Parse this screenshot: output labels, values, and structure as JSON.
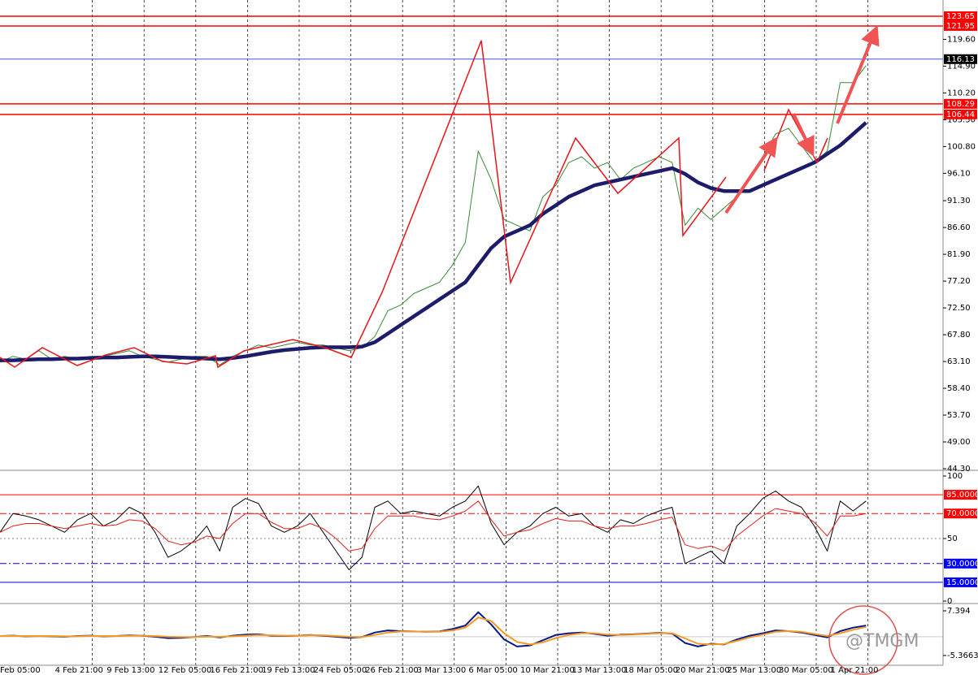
{
  "chart_data": [
    {
      "type": "line",
      "categories": [
        "Feb 05:00",
        null,
        null,
        null,
        "4 Feb 21:00",
        null,
        null,
        null,
        "9 Feb 13:00",
        null,
        null,
        null,
        "12 Feb 05:00",
        null,
        null,
        null,
        "16 Feb 21:00",
        null,
        null,
        null,
        "19 Feb 13:00",
        null,
        null,
        null,
        "24 Feb 05:00",
        null,
        null,
        null,
        "26 Feb 21:00",
        null,
        null,
        null,
        "3 Mar 13:00",
        null,
        null,
        null,
        "6 Mar 05:00",
        null,
        null,
        null,
        "10 Mar 21:00",
        null,
        null,
        null,
        "13 Mar 13:00",
        null,
        null,
        null,
        "18 Mar 05:00",
        null,
        null,
        null,
        "20 Mar 21:00",
        null,
        null,
        null,
        "25 Mar 13:00",
        null,
        null,
        null,
        "30 Mar 05:00",
        null,
        null,
        null,
        "1 Apr 21:00",
        null,
        null,
        null
      ],
      "series": [
        {
          "color": "#3a8a3a",
          "values": [
            63,
            64,
            63.5,
            65,
            63.5,
            64,
            63.5,
            64,
            64,
            64.5,
            65,
            64,
            63.5,
            63,
            63.5,
            64,
            64,
            62.5,
            64,
            65,
            66,
            65.5,
            66,
            66.5,
            66,
            66,
            65.5,
            65,
            65.5,
            67.5,
            72,
            73,
            75,
            76,
            77,
            80,
            84,
            100,
            95,
            88,
            87,
            86,
            92,
            94,
            98,
            99,
            97,
            98,
            95,
            97,
            98,
            99,
            98,
            87,
            90,
            88,
            90,
            92,
            95,
            99,
            103,
            104,
            101,
            98,
            100,
            112,
            112,
            115
          ]
        },
        {
          "color": "#1c1c6b",
          "values": [
            63.3,
            63.3,
            63.4,
            63.5,
            63.5,
            63.6,
            63.6,
            63.7,
            63.8,
            63.8,
            63.9,
            64,
            64,
            63.9,
            63.8,
            63.7,
            63.6,
            63.5,
            63.7,
            64,
            64.4,
            64.8,
            65.1,
            65.3,
            65.5,
            65.6,
            65.6,
            65.6,
            65.7,
            66.5,
            68,
            69.5,
            71,
            72.5,
            74,
            75.5,
            77,
            80,
            83,
            85,
            86,
            87,
            89,
            90.5,
            92,
            93,
            94,
            94.5,
            95,
            95.5,
            96,
            96.5,
            97,
            96,
            94.5,
            93.5,
            93,
            93,
            93,
            94,
            95,
            96,
            97,
            98,
            99.5,
            101,
            103,
            105
          ]
        }
      ],
      "ylim": [
        44.16,
        126.5
      ],
      "yticks": [
        {
          "value": 119.6,
          "label": "119.60"
        },
        {
          "value": 114.9,
          "label": "114.90"
        },
        {
          "value": 110.2,
          "label": "110.20"
        },
        {
          "value": 105.5,
          "label": "105.50"
        },
        {
          "value": 100.8,
          "label": "100.80"
        },
        {
          "value": 96.1,
          "label": "96.10"
        },
        {
          "value": 91.3,
          "label": "91.30"
        },
        {
          "value": 86.6,
          "label": "86.60"
        },
        {
          "value": 81.9,
          "label": "81.90"
        },
        {
          "value": 77.2,
          "label": "77.20"
        },
        {
          "value": 72.5,
          "label": "72.50"
        },
        {
          "value": 67.8,
          "label": "67.80"
        },
        {
          "value": 63.1,
          "label": "63.10"
        },
        {
          "value": 58.4,
          "label": "58.40"
        },
        {
          "value": 53.7,
          "label": "53.70"
        },
        {
          "value": 49,
          "label": "49.00"
        },
        {
          "value": 44.3,
          "label": "44.30"
        }
      ],
      "levels": [
        {
          "value": 123.65,
          "color": "#ff0000",
          "label_bg": "#ff0000"
        },
        {
          "value": 121.95,
          "color": "#ff0000",
          "label_bg": "#ff0000"
        },
        {
          "value": 116.13,
          "color": "#3355ff",
          "label_bg": "#000000"
        },
        {
          "value": 108.29,
          "color": "#ff0000",
          "label_bg": "#ff0000"
        },
        {
          "value": 106.44,
          "color": "#ff0000",
          "label_bg": "#ff0000"
        }
      ],
      "watermark": "@TMGM"
    },
    {
      "type": "line",
      "series": [
        {
          "color": "#000000",
          "values": [
            55,
            70,
            68,
            65,
            60,
            55,
            65,
            70,
            60,
            65,
            75,
            70,
            55,
            35,
            40,
            48,
            60,
            40,
            75,
            82,
            78,
            60,
            55,
            60,
            70,
            55,
            40,
            25,
            35,
            75,
            80,
            70,
            72,
            70,
            68,
            75,
            80,
            92,
            62,
            45,
            55,
            60,
            70,
            75,
            68,
            70,
            60,
            55,
            65,
            62,
            68,
            72,
            75,
            30,
            35,
            40,
            30,
            60,
            70,
            82,
            88,
            80,
            75,
            60,
            40,
            80,
            72,
            80
          ]
        },
        {
          "color": "#e02020",
          "values": [
            55,
            60,
            62,
            62,
            60,
            58,
            60,
            62,
            60,
            61,
            65,
            64,
            58,
            48,
            45,
            47,
            52,
            50,
            62,
            70,
            70,
            63,
            58,
            58,
            62,
            58,
            50,
            40,
            42,
            58,
            68,
            68,
            68,
            66,
            65,
            68,
            72,
            80,
            65,
            52,
            55,
            57,
            62,
            66,
            64,
            64,
            60,
            58,
            60,
            60,
            62,
            65,
            67,
            45,
            42,
            44,
            40,
            52,
            60,
            68,
            74,
            72,
            70,
            63,
            52,
            68,
            68,
            70
          ]
        }
      ],
      "ylim": [
        0,
        100
      ],
      "yticks": [
        100,
        50,
        0
      ],
      "levels": [
        {
          "value": 85,
          "label": "85.0000",
          "color": "#ff0000",
          "label_bg": "#ff0000",
          "style": "solid"
        },
        {
          "value": 70,
          "label": "70.0000",
          "color": "#ff0000",
          "label_bg": "#ff0000",
          "style": "dashdot"
        },
        {
          "value": 30,
          "label": "30.0000",
          "color": "#0000cc",
          "label_bg": "#0000ff",
          "style": "dashdot"
        },
        {
          "value": 15,
          "label": "15.0000",
          "color": "#0000cc",
          "label_bg": "#0000ff",
          "style": "solid"
        }
      ]
    },
    {
      "type": "line",
      "series": [
        {
          "color": "#0a1a8a",
          "values": [
            0.2,
            0.3,
            0.1,
            0.2,
            0.1,
            0,
            0.2,
            0.3,
            0.1,
            0.2,
            0.4,
            0.3,
            0,
            -0.4,
            -0.3,
            -0.1,
            0.2,
            -0.2,
            0.3,
            0.6,
            0.7,
            0.3,
            0.2,
            0.3,
            0.5,
            0.3,
            0,
            -0.3,
            -0.1,
            1.2,
            1.8,
            1.6,
            1.5,
            1.4,
            1.5,
            2.2,
            3.2,
            7,
            3.5,
            -0.8,
            -2.8,
            -2.5,
            -1,
            0.5,
            1,
            1.2,
            0.8,
            0.3,
            0.6,
            0.7,
            0.9,
            1.1,
            0.9,
            -1.8,
            -2.8,
            -2,
            -2.2,
            -0.8,
            0.3,
            1,
            1.8,
            1.6,
            1.2,
            0.5,
            -0.2,
            1.6,
            2.6,
            3.2
          ]
        },
        {
          "color": "#f59a23",
          "values": [
            0.2,
            0.2,
            0.2,
            0.2,
            0.2,
            0.1,
            0.1,
            0.2,
            0.2,
            0.2,
            0.3,
            0.3,
            0.2,
            0,
            -0.1,
            -0.1,
            0,
            0,
            0.1,
            0.3,
            0.5,
            0.4,
            0.3,
            0.3,
            0.4,
            0.4,
            0.2,
            0,
            -0.1,
            0.5,
            1.2,
            1.5,
            1.5,
            1.4,
            1.4,
            1.8,
            2.6,
            5.5,
            4.5,
            1,
            -1.5,
            -2.2,
            -1.6,
            -0.4,
            0.5,
            1,
            1,
            0.6,
            0.5,
            0.6,
            0.8,
            1,
            1,
            -0.5,
            -2,
            -2.2,
            -2.1,
            -1.2,
            -0.2,
            0.6,
            1.4,
            1.6,
            1.4,
            0.8,
            0.2,
            1,
            2,
            2.8
          ]
        }
      ],
      "ylim": [
        -7.92,
        9.02
      ],
      "yticks": [
        7.394,
        -5.3663
      ]
    }
  ]
}
